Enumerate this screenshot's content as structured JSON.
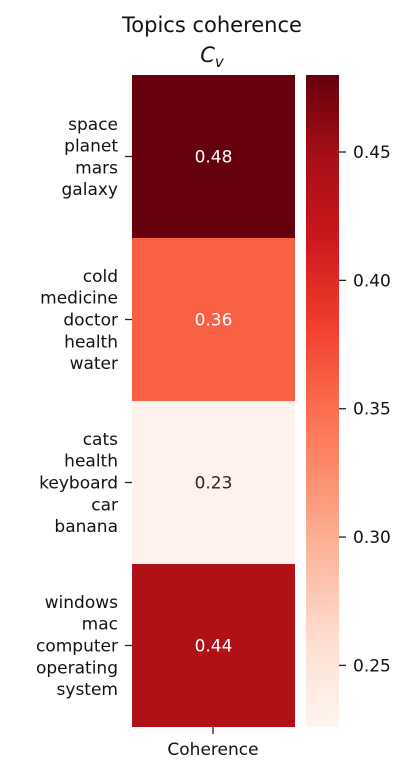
{
  "chart_data": {
    "type": "heatmap",
    "title": "Topics coherence",
    "subtitle_math": "C",
    "subtitle_sub": "v",
    "xlabel": "Coherence",
    "rows": [
      {
        "label_lines": [
          "space",
          "planet",
          "mars",
          "galaxy"
        ],
        "value": 0.48,
        "value_label": "0.48"
      },
      {
        "label_lines": [
          "cold ",
          "medicine",
          "doctor",
          "health",
          "water"
        ],
        "value": 0.36,
        "value_label": "0.36"
      },
      {
        "label_lines": [
          "cats ",
          "health",
          "keyboard",
          "car",
          "banana"
        ],
        "value": 0.23,
        "value_label": "0.23"
      },
      {
        "label_lines": [
          "windows",
          "mac",
          "computer",
          "operating",
          "system"
        ],
        "value": 0.44,
        "value_label": "0.44"
      }
    ],
    "colorbar": {
      "vmin": 0.226,
      "vmax": 0.48,
      "ticks": [
        0.25,
        0.3,
        0.35,
        0.4,
        0.45
      ],
      "tick_labels": [
        "0.25",
        "0.30",
        "0.35",
        "0.40",
        "0.45"
      ],
      "colormap": "Reds"
    }
  }
}
